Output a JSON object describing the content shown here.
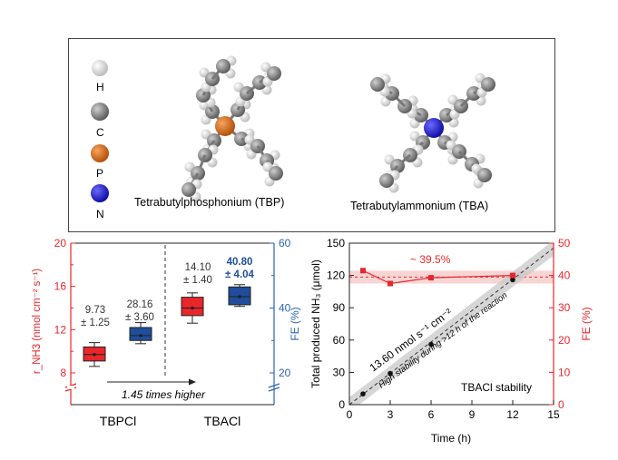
{
  "legend": {
    "atoms": [
      {
        "symbol": "H",
        "color": "#e6e6e6"
      },
      {
        "symbol": "C",
        "color": "#8c8c8c"
      },
      {
        "symbol": "P",
        "color": "#d2691e"
      },
      {
        "symbol": "N",
        "color": "#1a1ad9"
      }
    ]
  },
  "molecules": {
    "tbp_label": "Tetrabutylphosphonium (TBP)",
    "tba_label": "Tetrabutylammonium (TBA)"
  },
  "colors": {
    "red": "#e8262b",
    "blue": "#1f4e9c",
    "axis_red": "#e8262b",
    "axis_blue": "#2a66b0"
  },
  "chart_data": [
    {
      "type": "box",
      "categories": [
        "TBPCl",
        "TBACl"
      ],
      "ylabel_left": "r_NH3 (nmol cm⁻² s⁻¹)",
      "ylabel_right": "FE (%)",
      "ylim_left": [
        8,
        20
      ],
      "ylim_right": [
        20,
        60
      ],
      "left_ticks": [
        "8",
        "12",
        "16",
        "20"
      ],
      "right_ticks": [
        "20",
        "40",
        "60"
      ],
      "yield_boxes": [
        {
          "category": "TBPCl",
          "q1": 9.1,
          "median": 9.7,
          "q3": 10.4,
          "min": 8.6,
          "max": 10.8
        },
        {
          "category": "TBACl",
          "q1": 13.3,
          "median": 14.0,
          "q3": 15.0,
          "min": 12.6,
          "max": 15.4
        }
      ],
      "fe_boxes": [
        {
          "category": "TBPCl",
          "q1": 30.0,
          "median": 31.5,
          "q3": 34.0,
          "min": 29.0,
          "max": 35.5
        },
        {
          "category": "TBACl",
          "q1": 41.0,
          "median": 43.5,
          "q3": 46.5,
          "min": 40.5,
          "max": 47.2
        }
      ],
      "annotations": {
        "tbp_yield": [
          "9.73",
          "± 1.25"
        ],
        "tbp_fe": [
          "28.16",
          "± 3.60"
        ],
        "tba_yield": [
          "14.10",
          "± 1.40"
        ],
        "tba_fe": [
          "40.80",
          "± 4.04"
        ],
        "arrow_note": "1.45 times higher"
      }
    },
    {
      "type": "scatter",
      "title": "TBACl stability",
      "xlabel": "Time (h)",
      "ylabel_left": "Total produced NH₃ (μmol)",
      "ylabel_right": "FE (%)",
      "xlim": [
        0,
        15
      ],
      "ylim_left": [
        0,
        150
      ],
      "ylim_right": [
        0,
        50
      ],
      "x_ticks": [
        "0",
        "3",
        "6",
        "9",
        "12",
        "15"
      ],
      "left_ticks": [
        "0",
        "30",
        "60",
        "90",
        "120",
        "150"
      ],
      "right_ticks": [
        "0",
        "10",
        "20",
        "30",
        "40",
        "50"
      ],
      "series": [
        {
          "name": "NH3",
          "x": [
            1,
            3,
            6,
            12
          ],
          "y": [
            10,
            29,
            56,
            116
          ]
        },
        {
          "name": "FE",
          "x": [
            1,
            3,
            6,
            12
          ],
          "y": [
            41.5,
            37.5,
            39.3,
            40.0
          ]
        }
      ],
      "fe_average_label": "~ 39.5%",
      "fe_average": 39.5,
      "rate_label": "13.60 nmol s⁻¹ cm⁻²",
      "stability_note": "High stability during >12 h of the reaction"
    }
  ]
}
